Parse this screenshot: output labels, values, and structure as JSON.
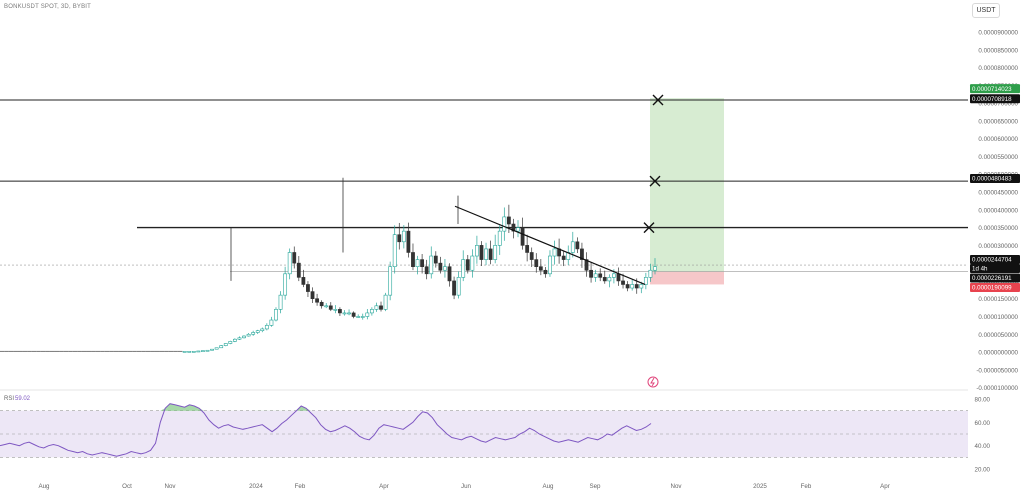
{
  "header": {
    "symbol": "BONKUSDT SPOT, 3D, BYBIT",
    "currency_button": "USDT"
  },
  "colors": {
    "up": "#26a69a",
    "down": "#333333",
    "target_zone": "#d7ecd2",
    "stop_zone": "#f6c7c9",
    "label_green": "#2e9e4a",
    "label_red": "#e8434e",
    "label_black": "#111111",
    "rsi_line": "#7e57c2",
    "rsi_band": "#ede7f6",
    "rsi_overbought_fill": "#81c784",
    "lightning": "#e0457b"
  },
  "chart_data": [
    {
      "type": "candlestick",
      "title": "",
      "xlabel": "",
      "ylabel": "",
      "ylim": [
        -1e-05,
        9.7e-05
      ],
      "grid": false,
      "y_ticks": [
        "0.0000900000",
        "0.0000850000",
        "0.0000800000",
        "0.0000750000",
        "0.0000700000",
        "0.0000650000",
        "0.0000600000",
        "0.0000550000",
        "0.0000500000",
        "0.0000450000",
        "0.0000400000",
        "0.0000350000",
        "0.0000300000",
        "0.0000250000",
        "0.0000200000",
        "0.0000150000",
        "0.0000100000",
        "0.0000050000",
        "0.0000000000",
        "-0.0000050000",
        "-0.0000100000"
      ],
      "x_ticks": [
        "Aug",
        "Oct",
        "Nov",
        "2024",
        "Feb",
        "Apr",
        "Jun",
        "Aug",
        "Sep",
        "Nov",
        "2025",
        "Feb",
        "Apr"
      ],
      "price_labels": [
        {
          "value": "0.0000714023",
          "kind": "target"
        },
        {
          "value": "0.0000708918",
          "kind": "level"
        },
        {
          "value": "0.0000480483",
          "kind": "level"
        },
        {
          "value": "0.0000244704",
          "kind": "last"
        },
        {
          "value": "1d 4h",
          "kind": "countdown"
        },
        {
          "value": "0.0000226191",
          "kind": "level"
        },
        {
          "value": "0.0000190099",
          "kind": "stop"
        }
      ],
      "horizontal_levels": [
        7.08918e-05,
        4.80483e-05,
        3.5e-05
      ],
      "marked_levels": [
        7.08918e-05,
        4.80483e-05,
        3.5e-05
      ],
      "last_price": 2.44704e-05,
      "last_price_line": 2.26191e-05,
      "position": {
        "entry": 2.26191e-05,
        "target": 7.14023e-05,
        "stop": 1.90099e-05
      },
      "trendline": {
        "from": [
          "May 2024",
          4.1e-05
        ],
        "to": [
          "Oct 2024",
          1.9e-05
        ]
      },
      "series": [
        {
          "name": "",
          "close": [
            2e-07,
            2e-07,
            2e-07,
            2e-07,
            2e-07,
            2e-07,
            2e-07,
            2e-07,
            2e-07,
            2e-07,
            2e-07,
            2e-07,
            2e-07,
            2e-07,
            2e-07,
            2e-07,
            2e-07,
            2e-07,
            2e-07,
            2e-07,
            2e-07,
            2e-07,
            2e-07,
            2e-07,
            2e-07,
            2e-07,
            2e-07,
            2e-07,
            2e-07,
            2e-07,
            2e-07,
            2e-07,
            2e-07,
            2e-07,
            2e-07,
            2e-07,
            2e-07,
            2e-07,
            2e-07,
            2e-07,
            2e-07,
            2e-07,
            2e-07,
            3e-07,
            4e-07,
            5e-07,
            8e-07,
            1.2e-06,
            1.8e-06,
            2.4e-06,
            3e-06,
            3.6e-06,
            4e-06,
            4.5e-06,
            5e-06,
            5.5e-06,
            6e-06,
            6.5e-06,
            7.5e-06,
            9e-06,
            1.2e-05,
            1.6e-05,
            2.2e-05,
            2.8e-05,
            2.5e-05,
            2.1e-05,
            1.9e-05,
            1.7e-05,
            1.5e-05,
            1.4e-05,
            1.3e-05,
            1.3e-05,
            1.2e-05,
            1.2e-05,
            1.1e-05,
            1.1e-05,
            1.1e-05,
            1e-05,
            1e-05,
            1e-05,
            1.1e-05,
            1.2e-05,
            1.3e-05,
            1.2e-05,
            1.6e-05,
            2.4e-05,
            3.3e-05,
            3.1e-05,
            3.4e-05,
            2.8e-05,
            2.4e-05,
            2.6e-05,
            2.4e-05,
            2.2e-05,
            2.7e-05,
            2.5e-05,
            2.3e-05,
            2.4e-05,
            2e-05,
            1.6e-05,
            2.1e-05,
            2.6e-05,
            2.3e-05,
            2.7e-05,
            3e-05,
            2.6e-05,
            2.9e-05,
            2.6e-05,
            3e-05,
            3.4e-05,
            3.8e-05,
            3.6e-05,
            3.4e-05,
            3.5e-05,
            3e-05,
            2.8e-05,
            2.6e-05,
            2.4e-05,
            2.3e-05,
            2.2e-05,
            2.7e-05,
            2.9e-05,
            2.7e-05,
            2.6e-05,
            2.8e-05,
            3.1e-05,
            2.9e-05,
            2.6e-05,
            2.3e-05,
            2.1e-05,
            2.2e-05,
            2.1e-05,
            2e-05,
            2.1e-05,
            2.2e-05,
            2e-05,
            1.9e-05,
            1.8e-05,
            1.9e-05,
            1.8e-05,
            1.9e-05,
            2.1e-05,
            2.3e-05,
            2.4e-05
          ]
        }
      ]
    },
    {
      "type": "line",
      "title": "RSI",
      "legend_label": "RSI",
      "legend_value": "59.02",
      "ylim": [
        20,
        80
      ],
      "y_ticks": [
        "80.00",
        "60.00",
        "40.00",
        "20.00"
      ],
      "bands": [
        30,
        50,
        70
      ],
      "series": [
        {
          "name": "RSI",
          "values": [
            40,
            41,
            42,
            41,
            40,
            42,
            43,
            41,
            39,
            38,
            40,
            41,
            40,
            38,
            36,
            35,
            34,
            35,
            33,
            32,
            33,
            34,
            33,
            32,
            31,
            32,
            33,
            35,
            34,
            33,
            34,
            36,
            42,
            60,
            72,
            76,
            75,
            74,
            73,
            75,
            74,
            72,
            68,
            62,
            58,
            55,
            57,
            58,
            56,
            55,
            54,
            55,
            56,
            57,
            58,
            55,
            52,
            55,
            59,
            62,
            66,
            70,
            74,
            72,
            68,
            64,
            58,
            54,
            52,
            53,
            55,
            57,
            55,
            52,
            48,
            46,
            45,
            49,
            55,
            58,
            57,
            56,
            55,
            54,
            57,
            60,
            65,
            69,
            68,
            64,
            58,
            54,
            50,
            47,
            46,
            45,
            47,
            48,
            46,
            44,
            43,
            45,
            47,
            46,
            45,
            46,
            47,
            50,
            52,
            55,
            53,
            50,
            48,
            46,
            44,
            43,
            44,
            45,
            44,
            43,
            45,
            47,
            46,
            45,
            47,
            50,
            49,
            52,
            55,
            57,
            55,
            53,
            54,
            56,
            59
          ]
        }
      ]
    }
  ]
}
